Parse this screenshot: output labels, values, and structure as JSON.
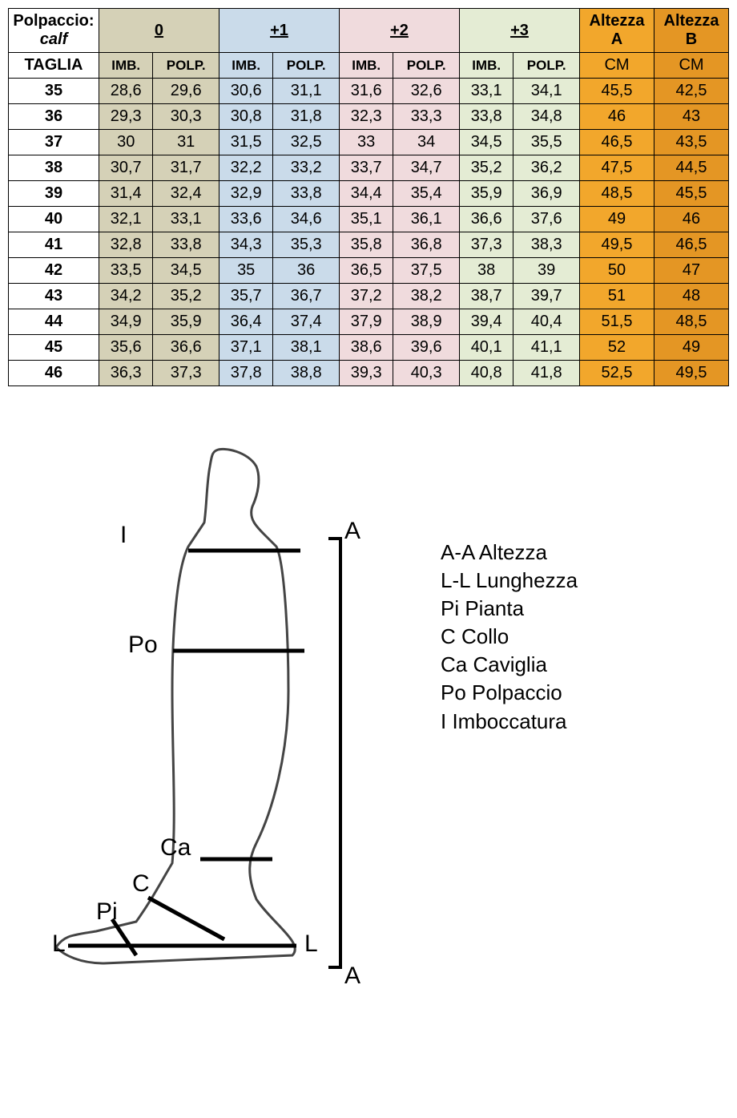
{
  "colors": {
    "c0": "#d5d1b7",
    "c1": "#cadbea",
    "c2": "#f0dbdd",
    "c3": "#e4ecd4",
    "altA": "#f2a72c",
    "altB": "#e49624",
    "white": "#ffffff"
  },
  "header": {
    "polpaccio_label": "Polpaccio:",
    "polpaccio_sub": "calf",
    "groups": [
      "0",
      "+1",
      "+2",
      "+3"
    ],
    "altA": "Altezza A",
    "altB": "Altezza B",
    "taglia": "TAGLIA",
    "imb": "IMB.",
    "polp": "POLP.",
    "cm": "CM"
  },
  "rows": [
    {
      "size": "35",
      "v": [
        "28,6",
        "29,6",
        "30,6",
        "31,1",
        "31,6",
        "32,6",
        "33,1",
        "34,1",
        "45,5",
        "42,5"
      ]
    },
    {
      "size": "36",
      "v": [
        "29,3",
        "30,3",
        "30,8",
        "31,8",
        "32,3",
        "33,3",
        "33,8",
        "34,8",
        "46",
        "43"
      ]
    },
    {
      "size": "37",
      "v": [
        "30",
        "31",
        "31,5",
        "32,5",
        "33",
        "34",
        "34,5",
        "35,5",
        "46,5",
        "43,5"
      ]
    },
    {
      "size": "38",
      "v": [
        "30,7",
        "31,7",
        "32,2",
        "33,2",
        "33,7",
        "34,7",
        "35,2",
        "36,2",
        "47,5",
        "44,5"
      ]
    },
    {
      "size": "39",
      "v": [
        "31,4",
        "32,4",
        "32,9",
        "33,8",
        "34,4",
        "35,4",
        "35,9",
        "36,9",
        "48,5",
        "45,5"
      ]
    },
    {
      "size": "40",
      "v": [
        "32,1",
        "33,1",
        "33,6",
        "34,6",
        "35,1",
        "36,1",
        "36,6",
        "37,6",
        "49",
        "46"
      ]
    },
    {
      "size": "41",
      "v": [
        "32,8",
        "33,8",
        "34,3",
        "35,3",
        "35,8",
        "36,8",
        "37,3",
        "38,3",
        "49,5",
        "46,5"
      ]
    },
    {
      "size": "42",
      "v": [
        "33,5",
        "34,5",
        "35",
        "36",
        "36,5",
        "37,5",
        "38",
        "39",
        "50",
        "47"
      ]
    },
    {
      "size": "43",
      "v": [
        "34,2",
        "35,2",
        "35,7",
        "36,7",
        "37,2",
        "38,2",
        "38,7",
        "39,7",
        "51",
        "48"
      ]
    },
    {
      "size": "44",
      "v": [
        "34,9",
        "35,9",
        "36,4",
        "37,4",
        "37,9",
        "38,9",
        "39,4",
        "40,4",
        "51,5",
        "48,5"
      ]
    },
    {
      "size": "45",
      "v": [
        "35,6",
        "36,6",
        "37,1",
        "38,1",
        "38,6",
        "39,6",
        "40,1",
        "41,1",
        "52",
        "49"
      ]
    },
    {
      "size": "46",
      "v": [
        "36,3",
        "37,3",
        "37,8",
        "38,8",
        "39,3",
        "40,3",
        "40,8",
        "41,8",
        "52,5",
        "49,5"
      ]
    }
  ],
  "diagram": {
    "labels": {
      "I": "I",
      "Po": "Po",
      "Ca": "Ca",
      "C": "C",
      "Pi": "Pi",
      "L": "L",
      "A": "A"
    },
    "legend": [
      "A-A Altezza",
      "L-L Lunghezza",
      "Pi Pianta",
      "C Collo",
      "Ca Caviglia",
      "Po Polpaccio",
      "I Imboccatura"
    ]
  }
}
